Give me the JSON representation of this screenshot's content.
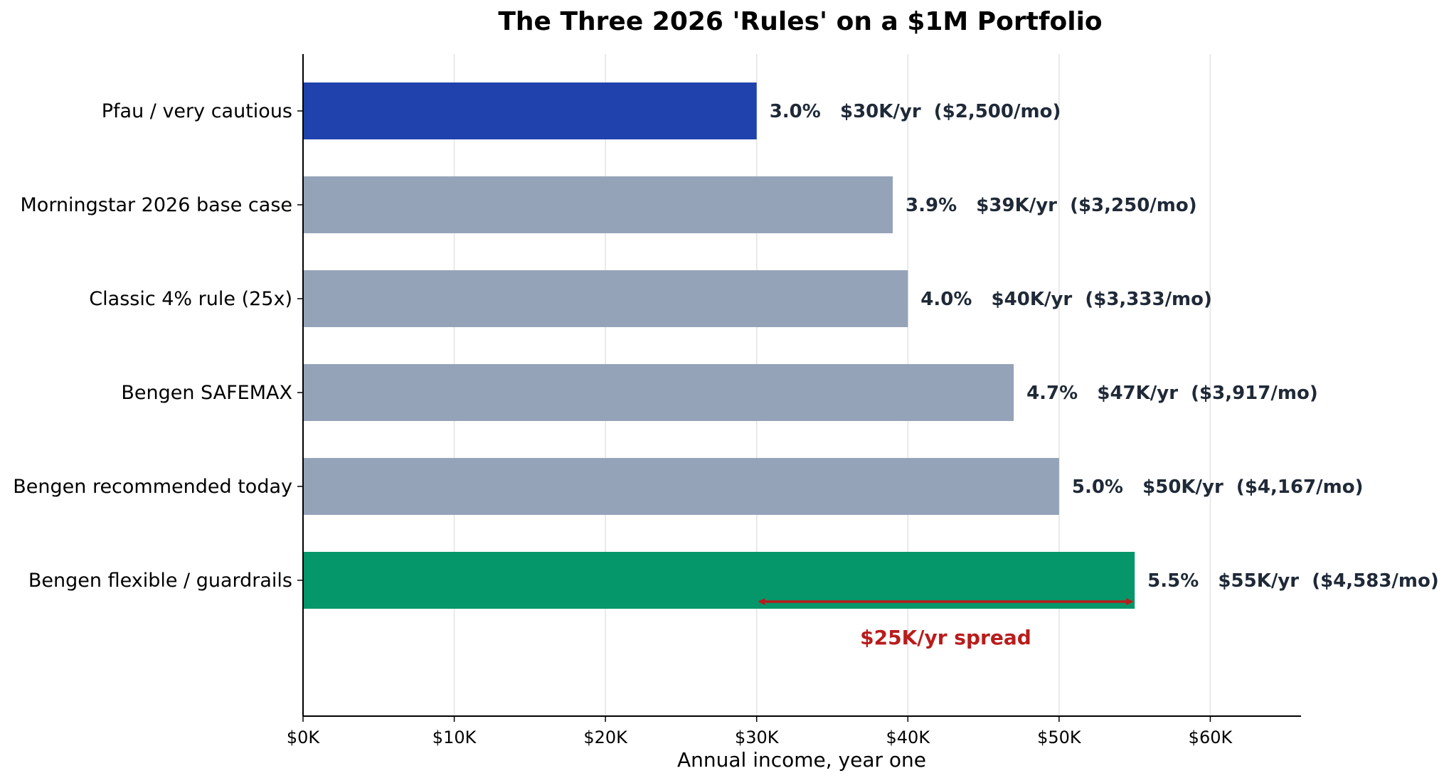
{
  "chart_data": {
    "type": "bar",
    "orientation": "horizontal",
    "title": "The Three 2026 'Rules' on a $1M Portfolio",
    "xlabel": "Annual income, year one",
    "ylabel": "",
    "xlim": [
      0,
      66000
    ],
    "x_ticks": [
      0,
      10000,
      20000,
      30000,
      40000,
      50000,
      60000
    ],
    "x_tick_labels": [
      "$0K",
      "$10K",
      "$20K",
      "$30K",
      "$40K",
      "$50K",
      "$60K"
    ],
    "grid": "vertical",
    "categories": [
      "Pfau / very cautious",
      "Morningstar 2026 base case",
      "Classic 4% rule (25x)",
      "Bengen SAFEMAX",
      "Bengen recommended today",
      "Bengen flexible / guardrails"
    ],
    "values": [
      30000,
      39000,
      40000,
      47000,
      50000,
      55000
    ],
    "colors": [
      "#1f42ad",
      "#94a3b8",
      "#94a3b8",
      "#94a3b8",
      "#94a3b8",
      "#059669"
    ],
    "data_labels": [
      "3.0%   $30K/yr  ($2,500/mo)",
      "3.9%   $39K/yr  ($3,250/mo)",
      "4.0%   $40K/yr  ($3,333/mo)",
      "4.7%   $47K/yr  ($3,917/mo)",
      "5.0%   $50K/yr  ($4,167/mo)",
      "5.5%   $55K/yr  ($4,583/mo)"
    ],
    "annotation": {
      "text": "$25K/yr spread",
      "from": 30000,
      "to": 55000,
      "color": "#b91c1c"
    }
  }
}
